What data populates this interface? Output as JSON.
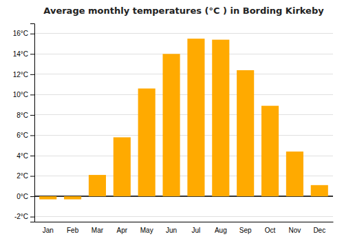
{
  "chart_data": {
    "type": "bar",
    "title": "Average monthly temperatures (°C ) in Bording Kirkeby",
    "categories": [
      "Jan",
      "Feb",
      "Mar",
      "Apr",
      "May",
      "Jun",
      "Jul",
      "Aug",
      "Sep",
      "Oct",
      "Nov",
      "Dec"
    ],
    "values": [
      -0.3,
      -0.3,
      2.1,
      5.8,
      10.6,
      14.0,
      15.5,
      15.4,
      12.4,
      8.9,
      4.4,
      1.1
    ],
    "color": "#FFAA00",
    "ylim": [
      -2.5,
      17
    ],
    "yticks": [
      {
        "value": -2,
        "label": "-2°C"
      },
      {
        "value": 0,
        "label": "0°C"
      },
      {
        "value": 2,
        "label": "2°C"
      },
      {
        "value": 4,
        "label": "4°C"
      },
      {
        "value": 6,
        "label": "6°C"
      },
      {
        "value": 8,
        "label": "8°C"
      },
      {
        "value": 10,
        "label": "10°C"
      },
      {
        "value": 12,
        "label": "12°C"
      },
      {
        "value": 14,
        "label": "14°C"
      },
      {
        "value": 16,
        "label": "16°C"
      }
    ],
    "grid": true
  }
}
